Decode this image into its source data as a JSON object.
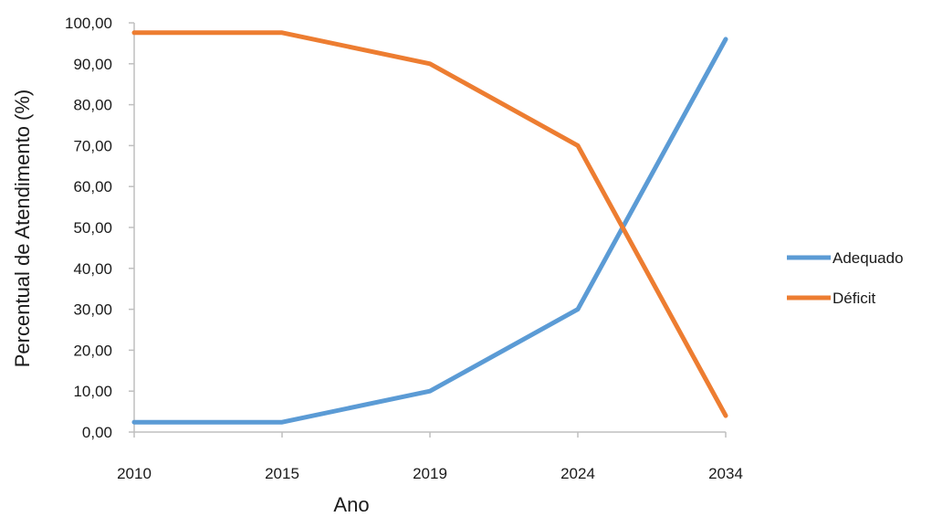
{
  "chart_data": {
    "type": "line",
    "categories": [
      "2010",
      "2015",
      "2019",
      "2024",
      "2034"
    ],
    "series": [
      {
        "name": "Adequado",
        "color": "#5b9bd5",
        "values": [
          2.4,
          2.4,
          10.0,
          30.0,
          96.0
        ]
      },
      {
        "name": "Déficit",
        "color": "#ed7d31",
        "values": [
          97.6,
          97.6,
          90.0,
          70.0,
          4.0
        ]
      }
    ],
    "y_ticks": [
      "0,00",
      "10,00",
      "20,00",
      "30,00",
      "40,00",
      "50,00",
      "60,00",
      "70,00",
      "80,00",
      "90,00",
      "100,00"
    ],
    "ylim": [
      0,
      100
    ],
    "xlabel": "Ano",
    "ylabel": "Percentual de Atendimento (%)",
    "legend_position": "right",
    "grid": false
  }
}
